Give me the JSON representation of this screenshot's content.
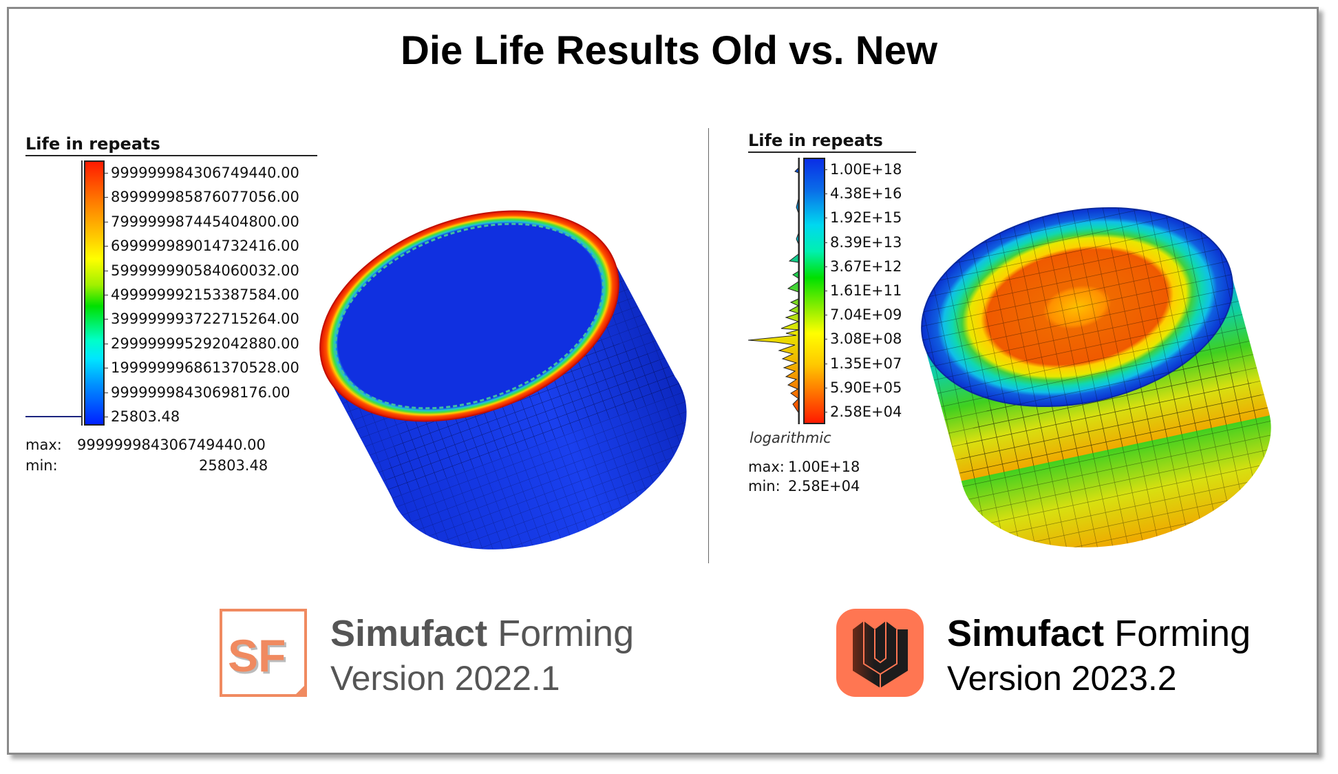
{
  "title": "Die Life Results Old vs. New",
  "left": {
    "legend_title": "Life in repeats",
    "ticks": [
      "999999984306749440.00",
      "899999985876077056.00",
      "799999987445404800.00",
      "699999989014732416.00",
      "599999990584060032.00",
      "499999992153387584.00",
      "399999993722715264.00",
      "299999995292042880.00",
      "199999996861370528.00",
      "99999998430698176.00",
      "25803.48"
    ],
    "max_label": "max:",
    "max_value": "999999984306749440.00",
    "min_label": "min:",
    "min_value": "25803.48",
    "scale": "linear"
  },
  "right": {
    "legend_title": "Life in repeats",
    "ticks": [
      "1.00E+18",
      "4.38E+16",
      "1.92E+15",
      "8.39E+13",
      "3.67E+12",
      "1.61E+11",
      "7.04E+09",
      "3.08E+08",
      "1.35E+07",
      "5.90E+05",
      "2.58E+04"
    ],
    "scale_note": "logarithmic",
    "max_label": "max:",
    "max_value": "1.00E+18",
    "min_label": "min:",
    "min_value": "2.58E+04"
  },
  "logos": {
    "old": {
      "logo_text": "SF",
      "brand_bold": "Simufact",
      "brand_light": "Forming",
      "version": "Version 2022.1"
    },
    "new": {
      "brand_bold": "Simufact",
      "brand_light": "Forming",
      "version": "Version 2023.2"
    }
  },
  "colors": {
    "accent_orange": "#f07f56",
    "logo_new_bg": "#ff7652",
    "frame": "#8a8a8a"
  }
}
